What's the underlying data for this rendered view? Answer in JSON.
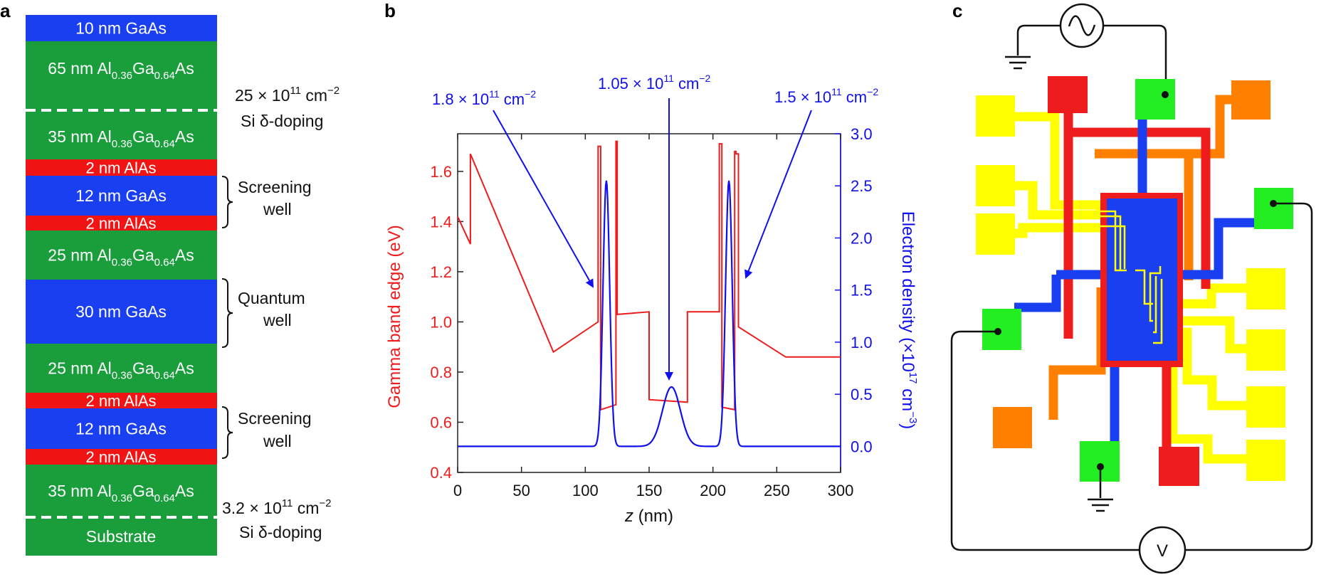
{
  "figure": {
    "panel_labels": {
      "a": "a",
      "b": "b",
      "c": "c"
    },
    "colors": {
      "gaas": "#1a3ff0",
      "algaas": "#1a9e3c",
      "alas": "#f01414",
      "band": "#ee1c1c",
      "density": "#1010ee",
      "bond_yellow": "#ffff00",
      "bond_orange": "#ff7f00",
      "bond_red": "#ee1c1c",
      "bond_green": "#22ee22",
      "bond_blue": "#1a3ff0"
    }
  },
  "panel_a": {
    "layers": [
      {
        "type": "gaas",
        "label": "10 nm GaAs"
      },
      {
        "type": "algaas",
        "label_main": "65 nm Al",
        "sub1": "0.36",
        "mid": "Ga",
        "sub2": "0.64",
        "tail": "As"
      },
      {
        "type": "algaas",
        "label_main": "35 nm Al",
        "sub1": "0.36",
        "mid": "Ga",
        "sub2": "0.64",
        "tail": "As"
      },
      {
        "type": "alas",
        "label": "2 nm AlAs"
      },
      {
        "type": "gaas",
        "label": "12 nm GaAs"
      },
      {
        "type": "alas",
        "label": "2 nm AlAs"
      },
      {
        "type": "algaas",
        "label_main": "25 nm Al",
        "sub1": "0.36",
        "mid": "Ga",
        "sub2": "0.64",
        "tail": "As"
      },
      {
        "type": "gaas",
        "label": "30 nm GaAs"
      },
      {
        "type": "algaas",
        "label_main": "25 nm Al",
        "sub1": "0.36",
        "mid": "Ga",
        "sub2": "0.64",
        "tail": "As"
      },
      {
        "type": "alas",
        "label": "2 nm AlAs"
      },
      {
        "type": "gaas",
        "label": "12 nm GaAs"
      },
      {
        "type": "alas",
        "label": "2 nm AlAs"
      },
      {
        "type": "algaas",
        "label_main": "35 nm Al",
        "sub1": "0.36",
        "mid": "Ga",
        "sub2": "0.64",
        "tail": "As"
      },
      {
        "type": "algaas",
        "label": "Substrate"
      }
    ],
    "annotations": {
      "doping_top_value": "25 × 10",
      "doping_top_exp": "11",
      "doping_top_unit": " cm",
      "doping_top_unit_exp": "−2",
      "doping_top_label": "Si δ-doping",
      "doping_bottom_value": "3.2 × 10",
      "doping_bottom_exp": "11",
      "doping_bottom_unit": " cm",
      "doping_bottom_unit_exp": "−2",
      "doping_bottom_label": "Si δ-doping",
      "screening_1": "Screening",
      "well_1": "well",
      "quantum": "Quantum",
      "well_2": "well",
      "screening_2": "Screening",
      "well_3": "well"
    }
  },
  "chart_data": {
    "type": "line",
    "xlabel_italic": "z",
    "xlabel_rest": " (nm)",
    "ylabel_left": "Gamma band edge (eV)",
    "ylabel_right_main": "Electron density (×10",
    "ylabel_right_exp": "17",
    "ylabel_right_unit": " cm",
    "ylabel_right_unit_exp": "−3",
    "ylabel_right_close": ")",
    "xlim": [
      0,
      300
    ],
    "ylim_left": [
      0.4,
      1.75
    ],
    "ylim_right": [
      -0.25,
      3.0
    ],
    "xticks": [
      0,
      50,
      100,
      150,
      200,
      250,
      300
    ],
    "xtick_labels": [
      "0",
      "50",
      "100",
      "150",
      "200",
      "250",
      "300"
    ],
    "yticks_left": [
      0.4,
      0.6,
      0.8,
      1.0,
      1.2,
      1.4,
      1.6
    ],
    "ytick_labels_left": [
      "0.4",
      "0.6",
      "0.8",
      "1.0",
      "1.2",
      "1.4",
      "1.6"
    ],
    "yticks_right": [
      0.0,
      0.5,
      1.0,
      1.5,
      2.0,
      2.5,
      3.0
    ],
    "ytick_labels_right": [
      "0.0",
      "0.5",
      "1.0",
      "1.5",
      "2.0",
      "2.5",
      "3.0"
    ],
    "series": [
      {
        "name": "Gamma band edge",
        "axis": "left",
        "x": [
          0,
          10,
          10,
          75,
          110,
          110,
          112,
          112,
          124,
          124,
          125,
          125,
          150,
          150,
          180,
          180,
          205,
          205,
          207,
          207,
          217,
          217,
          218,
          218,
          220,
          220,
          257,
          300
        ],
        "y": [
          1.42,
          1.31,
          1.67,
          0.88,
          1.0,
          1.7,
          1.7,
          0.65,
          0.67,
          1.72,
          1.72,
          1.03,
          1.04,
          0.69,
          0.68,
          1.04,
          1.04,
          1.71,
          1.71,
          0.66,
          0.65,
          1.68,
          1.68,
          1.67,
          1.67,
          0.98,
          0.86,
          0.86
        ]
      },
      {
        "name": "Electron density",
        "axis": "right",
        "peaks": [
          {
            "center": 116.5,
            "amplitude": 2.55,
            "sigma": 2.6
          },
          {
            "center": 167.5,
            "amplitude": 0.57,
            "sigma": 7.0
          },
          {
            "center": 212.5,
            "amplitude": 2.55,
            "sigma": 2.6
          }
        ]
      }
    ],
    "annotations": [
      {
        "value": "1.8 × 10",
        "exp": "11",
        "unit": " cm",
        "unit_exp": "−2",
        "points_to_x": 104
      },
      {
        "value": "1.05 × 10",
        "exp": "11",
        "unit": " cm",
        "unit_exp": "−2",
        "points_to_x": 165
      },
      {
        "value": "1.5 × 10",
        "exp": "11",
        "unit": " cm",
        "unit_exp": "−2",
        "points_to_x": 225
      }
    ]
  },
  "panel_c": {
    "source_symbol": "~",
    "voltmeter": "V"
  }
}
